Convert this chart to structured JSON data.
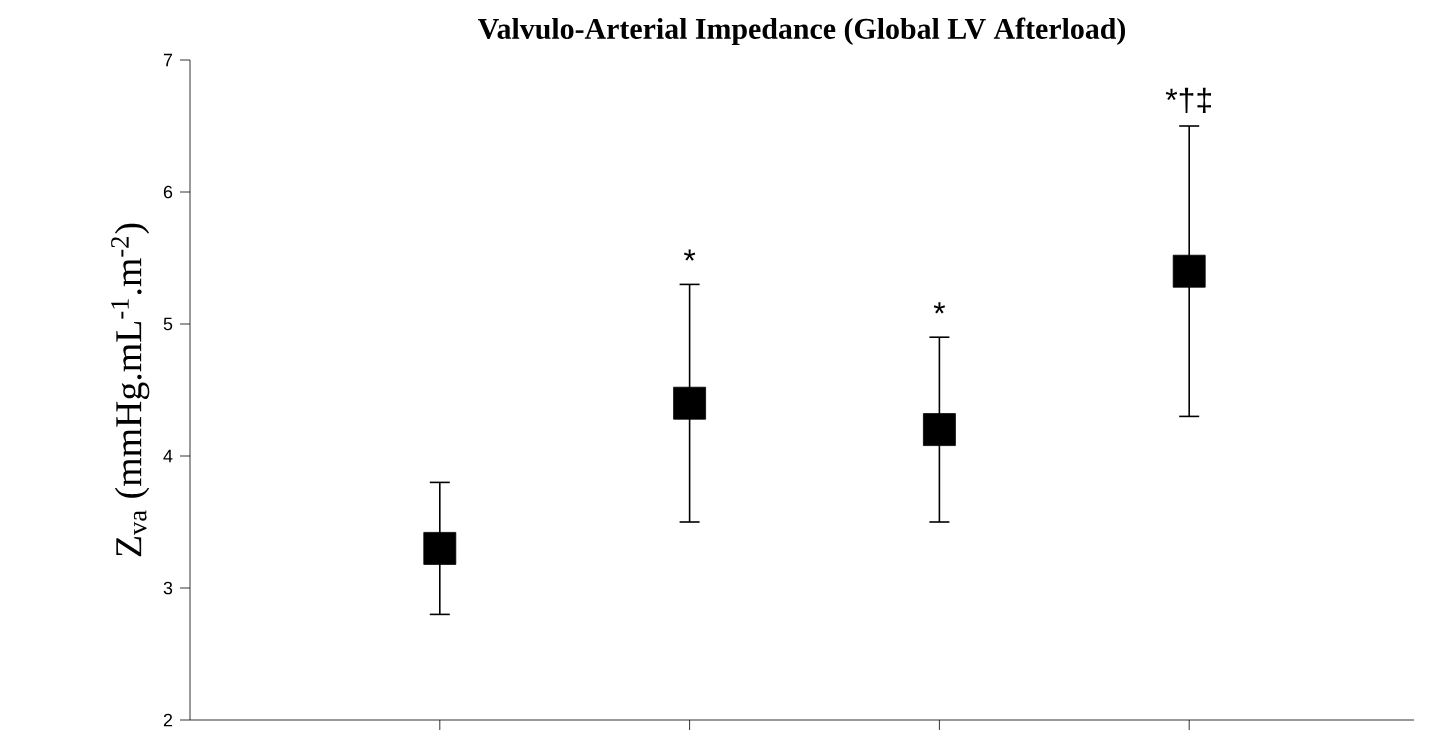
{
  "chart_data": {
    "type": "scatter",
    "title": "Valvulo-Arterial Impedance (Global LV Afterload)",
    "ylabel": "Z$_{va}$ (mmHg.mL$^{-1}$.m$^{-2}$)",
    "categories": [
      null,
      null,
      null,
      null
    ],
    "values": [
      3.3,
      4.4,
      4.2,
      5.4
    ],
    "errors": [
      0.5,
      0.9,
      0.7,
      1.1
    ],
    "annotations": [
      "*",
      "*",
      "*†‡"
    ],
    "color": "#000000",
    "marker": "square",
    "grid": false,
    "ylim": [
      2,
      7
    ],
    "yticks": [
      2,
      3,
      4,
      5,
      6,
      7
    ]
  }
}
